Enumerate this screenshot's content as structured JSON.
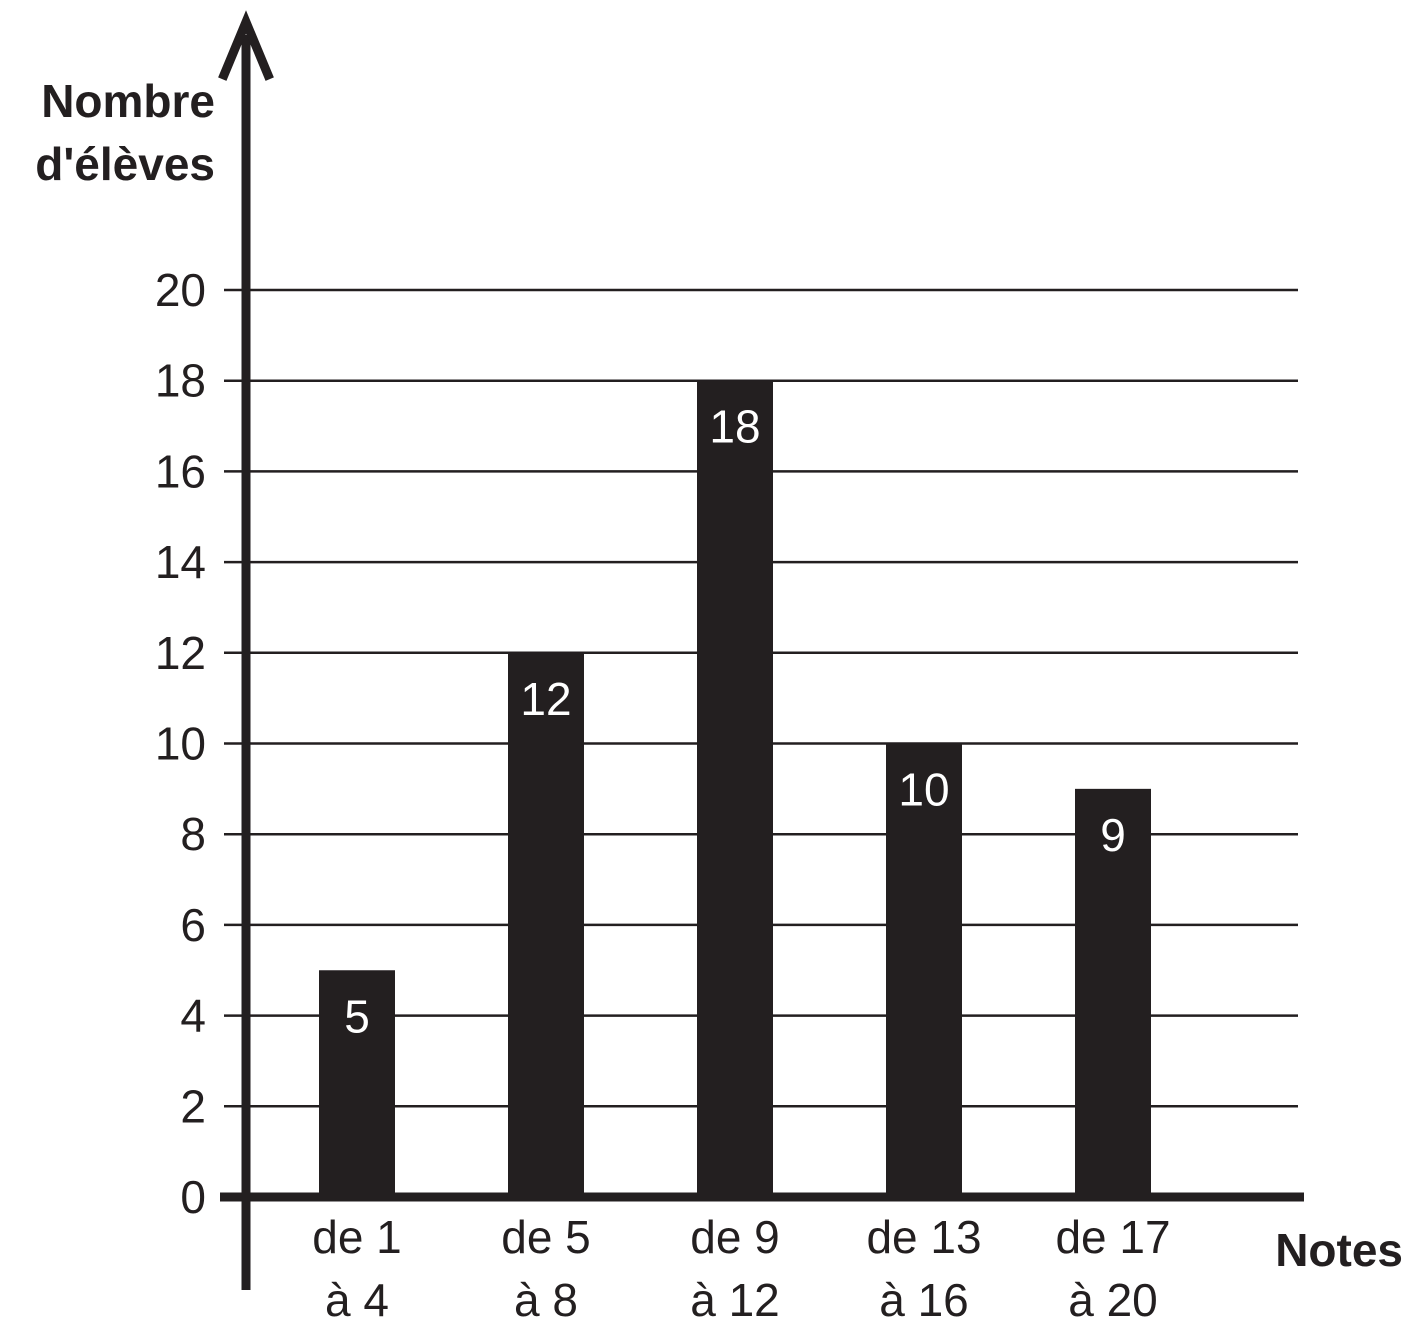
{
  "chart_data": {
    "type": "bar",
    "ylabel_lines": [
      "Nombre",
      "d'élèves"
    ],
    "xlabel": "Notes",
    "categories": [
      [
        "de 1",
        "à 4"
      ],
      [
        "de 5",
        "à 8"
      ],
      [
        "de 9",
        "à 12"
      ],
      [
        "de 13",
        "à 16"
      ],
      [
        "de 17",
        "à 20"
      ]
    ],
    "values": [
      5,
      12,
      18,
      10,
      9
    ],
    "value_labels": [
      "5",
      "12",
      "18",
      "10",
      "9"
    ],
    "ylim": [
      0,
      20
    ],
    "yticks": [
      0,
      2,
      4,
      6,
      8,
      10,
      12,
      14,
      16,
      18,
      20
    ],
    "grid": true,
    "colors": {
      "bar": "#231f20",
      "axis": "#231f20",
      "grid": "#231f20",
      "bar_label": "#ffffff"
    }
  }
}
